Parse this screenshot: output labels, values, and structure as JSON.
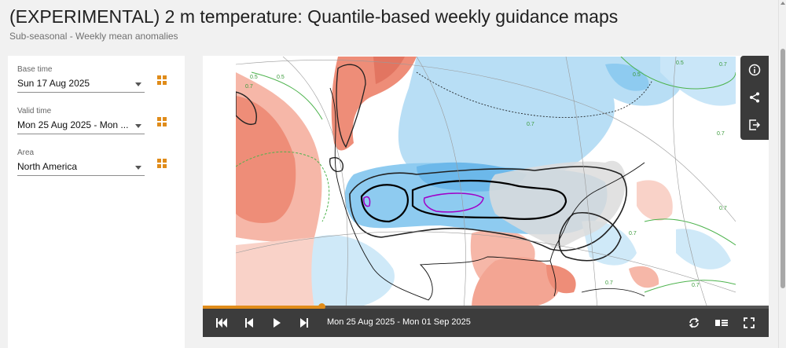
{
  "header": {
    "title": "(EXPERIMENTAL) 2 m temperature: Quantile-based weekly guidance maps",
    "subtitle": "Sub-seasonal - Weekly mean anomalies"
  },
  "controls": {
    "base_time": {
      "label": "Base time",
      "value": "Sun 17 Aug 2025"
    },
    "valid_time": {
      "label": "Valid time",
      "value": "Mon 25 Aug 2025 - Mon ..."
    },
    "area": {
      "label": "Area",
      "value": "North America"
    }
  },
  "map": {
    "contour_labels": [
      "0.5",
      "0.5",
      "0.7",
      "0.7",
      "0.7",
      "0.7",
      "0.7",
      "0.7",
      "0.7",
      "0.7",
      "0.5",
      "0.5"
    ]
  },
  "player": {
    "date_range": "Mon 25 Aug 2025 - Mon 01 Sep 2025",
    "progress": 0.21
  },
  "icons": {
    "info": "info-icon",
    "share": "share-icon",
    "export": "export-icon",
    "first": "skip-first-icon",
    "previous": "step-back-icon",
    "play": "play-icon",
    "next": "step-forward-icon",
    "loop": "loop-icon",
    "legend": "legend-icon",
    "fullscreen": "fullscreen-icon",
    "selector": "grid-picker-icon"
  },
  "colors": {
    "accent": "#e08c1a",
    "warm_anomaly": "#f3a593",
    "cold_anomaly": "#8ecbf0",
    "toolbar": "#3c3c3c"
  }
}
